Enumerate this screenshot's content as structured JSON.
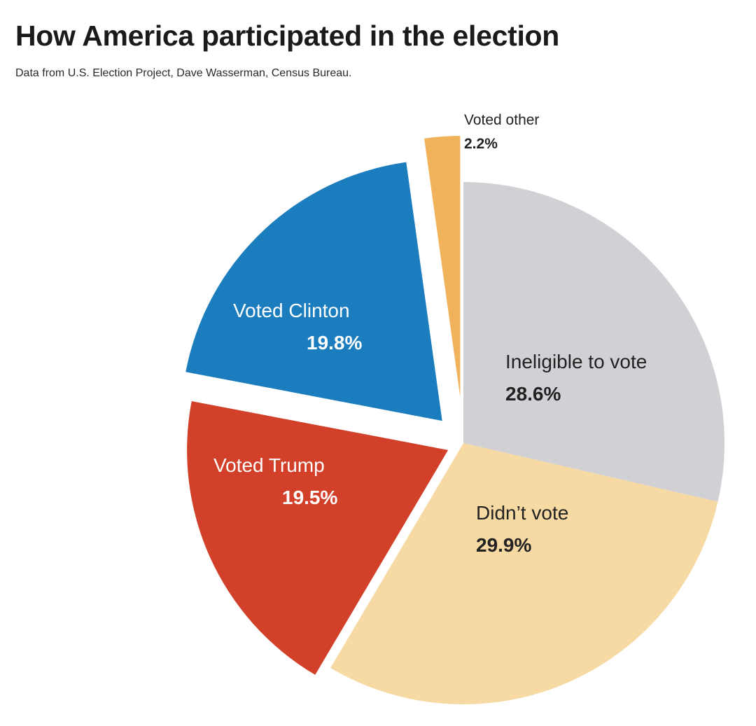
{
  "header": {
    "title": "How America participated in the election",
    "subtitle": "Data from U.S. Election Project, Dave Wasserman, Census Bureau."
  },
  "chart_data": {
    "type": "pie",
    "title": "How America participated in the election",
    "subtitle": "Data from U.S. Election Project, Dave Wasserman, Census Bureau.",
    "unit": "%",
    "start": "12 o'clock, clockwise",
    "slices": [
      {
        "label": "Ineligible to vote",
        "value": 28.6,
        "value_label": "28.6%",
        "color": "#d1d0d5",
        "text_color": "#222222",
        "exploded": false
      },
      {
        "label": "Didn’t vote",
        "value": 29.9,
        "value_label": "29.9%",
        "color": "#f6d9a3",
        "text_color": "#222222",
        "exploded": false
      },
      {
        "label": "Voted Trump",
        "value": 19.5,
        "value_label": "19.5%",
        "color": "#d2402a",
        "text_color": "#ffffff",
        "exploded": true
      },
      {
        "label": "Voted Clinton",
        "value": 19.8,
        "value_label": "19.8%",
        "color": "#1b7dbe",
        "text_color": "#ffffff",
        "exploded": true
      },
      {
        "label": "Voted other",
        "value": 2.2,
        "value_label": "2.2%",
        "color": "#f0b25a",
        "text_color": "#222222",
        "exploded": true
      }
    ]
  }
}
